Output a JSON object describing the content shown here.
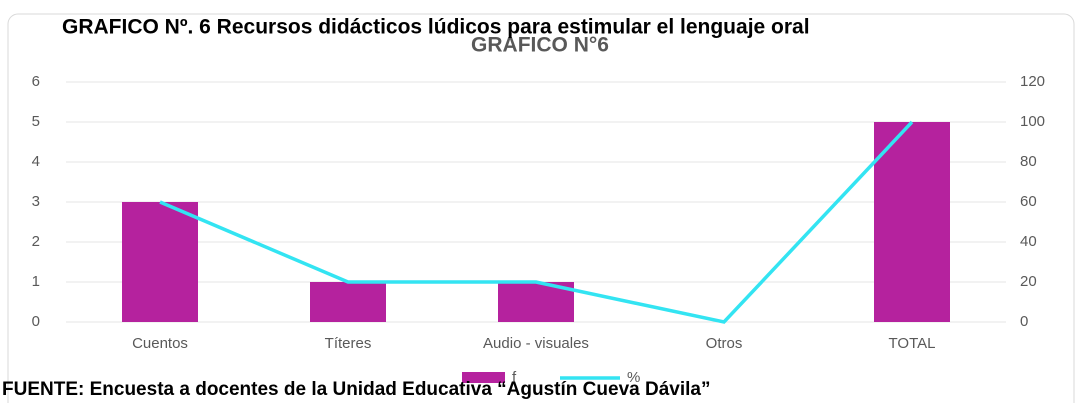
{
  "chart_data": {
    "type": "bar",
    "title": "GRAFICO Nº. 6  Recursos didácticos lúdicos para estimular el lenguaje oral",
    "subtitle": "GRAFICO N°6",
    "source": "FUENTE: Encuesta a docentes de la Unidad Educativa “Agustín Cueva Dávila”",
    "categories": [
      "Cuentos",
      "Títeres",
      "Audio - visuales",
      "Otros",
      "TOTAL"
    ],
    "series": [
      {
        "name": "f",
        "type": "bar",
        "color": "#b5229e",
        "values": [
          3,
          1,
          1,
          0,
          5
        ]
      },
      {
        "name": "%",
        "type": "line",
        "axis": "y2",
        "color": "#33e4f2",
        "values": [
          60,
          20,
          20,
          0,
          100
        ]
      }
    ],
    "ylim": [
      0,
      6
    ],
    "yticks": [
      0,
      1,
      2,
      3,
      4,
      5,
      6
    ],
    "y2lim": [
      0,
      120
    ],
    "y2ticks": [
      0,
      20,
      40,
      60,
      80,
      100,
      120
    ],
    "grid": true,
    "legend": "bottom"
  }
}
